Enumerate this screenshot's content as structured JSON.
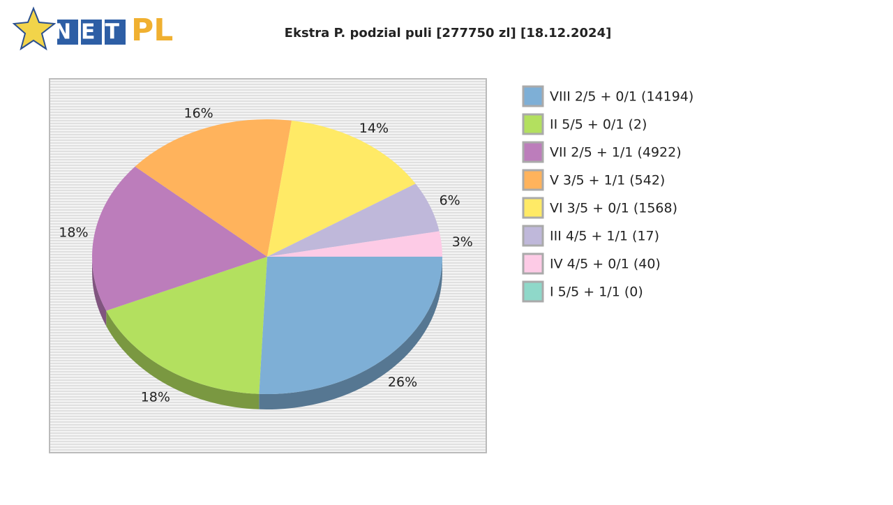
{
  "logo": {
    "net": "NET",
    "pl": "PL"
  },
  "chart_data": {
    "type": "pie",
    "title": "Ekstra P. podzial puli [277750 zl] [18.12.2024]",
    "categories": [
      "VIII 2/5 + 0/1 (14194)",
      "II 5/5 + 0/1 (2)",
      "VII 2/5 + 1/1 (4922)",
      "V 3/5 + 1/1 (542)",
      "VI 3/5 + 0/1 (1568)",
      "III 4/5 + 1/1 (17)",
      "IV 4/5 + 0/1 (40)",
      "I 5/5 + 1/1 (0)"
    ],
    "values": [
      26,
      18,
      18,
      16,
      14,
      6,
      3,
      0
    ],
    "value_labels": [
      "26%",
      "18%",
      "18%",
      "16%",
      "14%",
      "6%",
      "3%",
      null
    ],
    "colors": [
      "#7eafd6",
      "#b3e05f",
      "#bc7dbb",
      "#ffb35c",
      "#ffea66",
      "#bfb8da",
      "#fdcbe6",
      "#8fd8c9"
    ],
    "legend": "right"
  }
}
